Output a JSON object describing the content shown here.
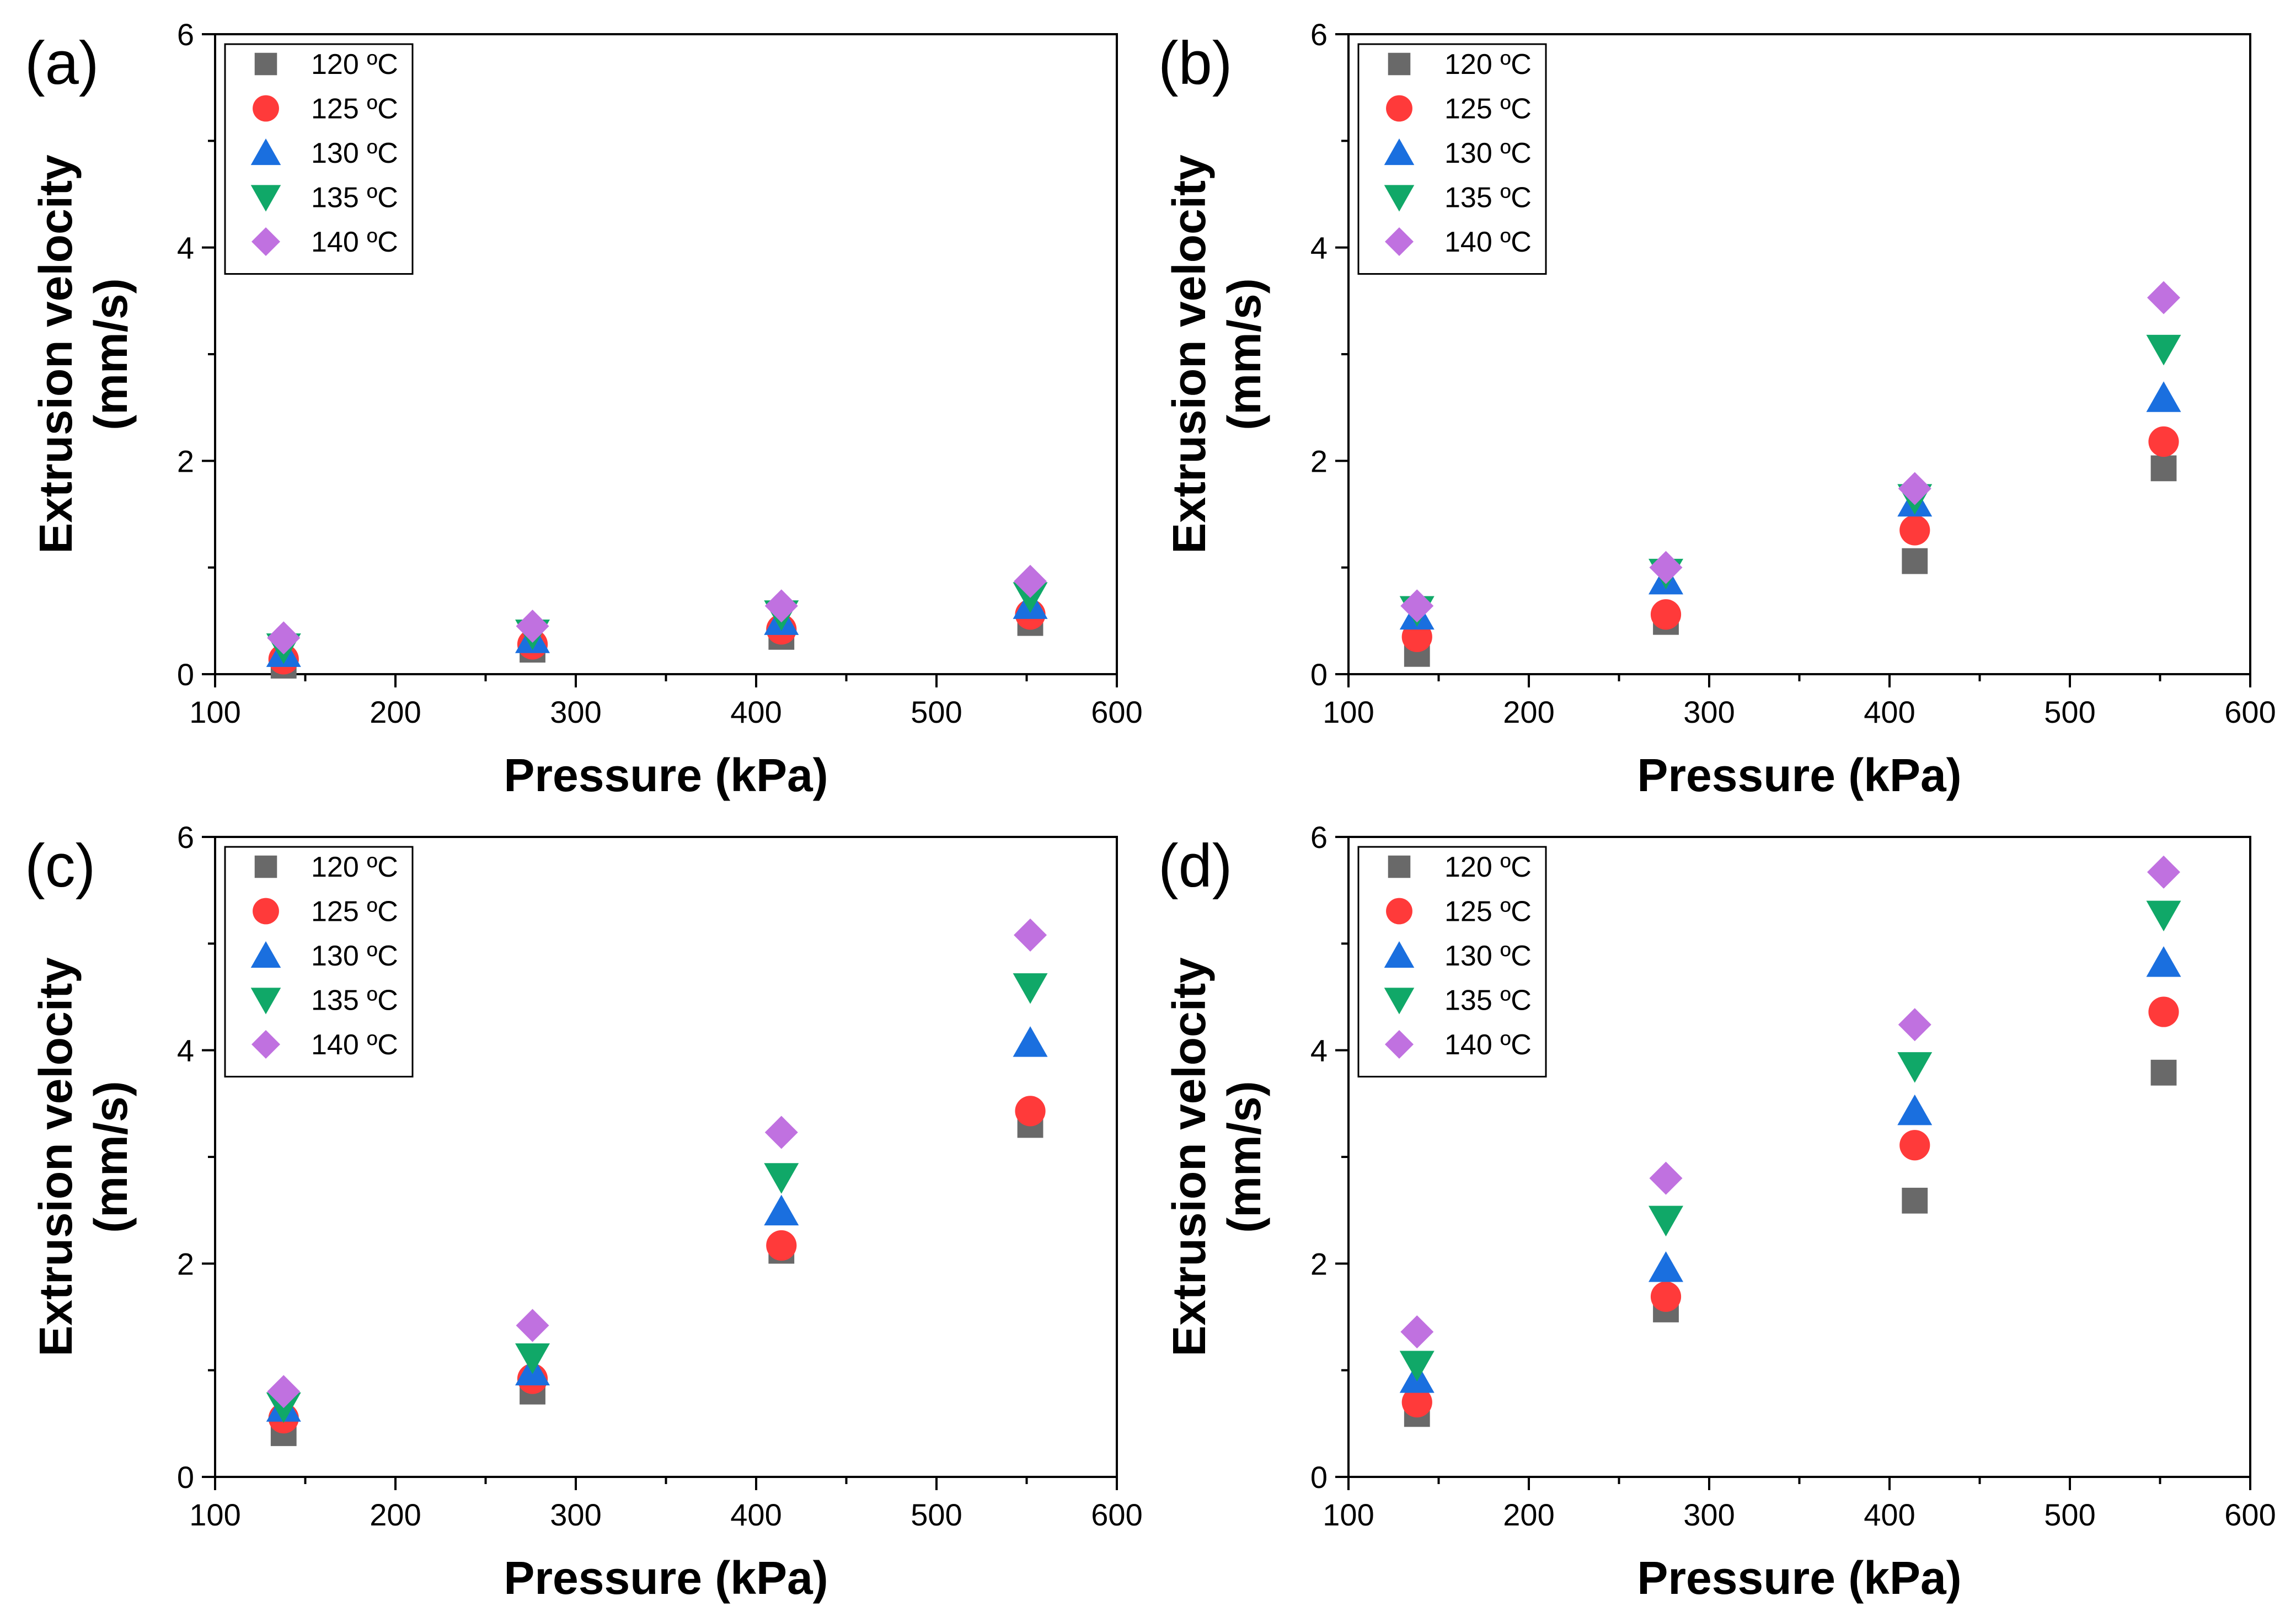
{
  "chart_data": [
    {
      "type": "scatter",
      "panel_label": "(a)",
      "xlabel": "Pressure (kPa)",
      "ylabel_line1": "Extrusion velocity",
      "ylabel_line2": "(mm/s)",
      "xlim": [
        100,
        600
      ],
      "ylim": [
        0,
        6
      ],
      "xticks": [
        "100",
        "200",
        "300",
        "400",
        "500",
        "600"
      ],
      "yticks": [
        "0",
        "2",
        "4",
        "6"
      ],
      "x": [
        138,
        276,
        414,
        552
      ],
      "series": [
        {
          "name": "120 ºC",
          "values": [
            0.08,
            0.23,
            0.35,
            0.48
          ]
        },
        {
          "name": "125 ºC",
          "values": [
            0.14,
            0.28,
            0.42,
            0.56
          ]
        },
        {
          "name": "130 ºC",
          "values": [
            0.2,
            0.33,
            0.5,
            0.65
          ]
        },
        {
          "name": "135 ºC",
          "values": [
            0.25,
            0.38,
            0.56,
            0.73
          ]
        },
        {
          "name": "140 ºC",
          "values": [
            0.34,
            0.45,
            0.64,
            0.87
          ]
        }
      ]
    },
    {
      "type": "scatter",
      "panel_label": "(b)",
      "xlabel": "Pressure (kPa)",
      "ylabel_line1": "Extrusion velocity",
      "ylabel_line2": "(mm/s)",
      "xlim": [
        100,
        600
      ],
      "ylim": [
        0,
        6
      ],
      "xticks": [
        "100",
        "200",
        "300",
        "400",
        "500",
        "600"
      ],
      "yticks": [
        "0",
        "2",
        "4",
        "6"
      ],
      "x": [
        138,
        276,
        414,
        552
      ],
      "series": [
        {
          "name": "120 ºC",
          "values": [
            0.19,
            0.49,
            1.06,
            1.93
          ]
        },
        {
          "name": "125 ºC",
          "values": [
            0.35,
            0.56,
            1.35,
            2.18
          ]
        },
        {
          "name": "130 ºC",
          "values": [
            0.55,
            0.88,
            1.61,
            2.59
          ]
        },
        {
          "name": "135 ºC",
          "values": [
            0.6,
            0.95,
            1.65,
            3.05
          ]
        },
        {
          "name": "140 ºC",
          "values": [
            0.64,
            1.0,
            1.74,
            3.53
          ]
        }
      ]
    },
    {
      "type": "scatter",
      "panel_label": "(c)",
      "xlabel": "Pressure (kPa)",
      "ylabel_line1": "Extrusion velocity",
      "ylabel_line2": "(mm/s)",
      "xlim": [
        100,
        600
      ],
      "ylim": [
        0,
        6
      ],
      "xticks": [
        "100",
        "200",
        "300",
        "400",
        "500",
        "600"
      ],
      "yticks": [
        "0",
        "2",
        "4",
        "6"
      ],
      "x": [
        138,
        276,
        414,
        552
      ],
      "series": [
        {
          "name": "120 ºC",
          "values": [
            0.41,
            0.8,
            2.12,
            3.3
          ]
        },
        {
          "name": "125 ºC",
          "values": [
            0.55,
            0.92,
            2.17,
            3.43
          ]
        },
        {
          "name": "130 ºC",
          "values": [
            0.65,
            0.99,
            2.49,
            4.07
          ]
        },
        {
          "name": "135 ºC",
          "values": [
            0.66,
            1.12,
            2.81,
            4.59
          ]
        },
        {
          "name": "140 ºC",
          "values": [
            0.8,
            1.42,
            3.23,
            5.08
          ]
        }
      ]
    },
    {
      "type": "scatter",
      "panel_label": "(d)",
      "xlabel": "Pressure (kPa)",
      "ylabel_line1": "Extrusion velocity",
      "ylabel_line2": "(mm/s)",
      "xlim": [
        100,
        600
      ],
      "ylim": [
        0,
        6
      ],
      "xticks": [
        "100",
        "200",
        "300",
        "400",
        "500",
        "600"
      ],
      "yticks": [
        "0",
        "2",
        "4",
        "6"
      ],
      "x": [
        138,
        276,
        414,
        552
      ],
      "series": [
        {
          "name": "120 ºC",
          "values": [
            0.59,
            1.57,
            2.59,
            3.79
          ]
        },
        {
          "name": "125 ºC",
          "values": [
            0.7,
            1.69,
            3.11,
            4.36
          ]
        },
        {
          "name": "130 ºC",
          "values": [
            0.92,
            1.96,
            3.43,
            4.82
          ]
        },
        {
          "name": "135 ºC",
          "values": [
            1.05,
            2.41,
            3.85,
            5.27
          ]
        },
        {
          "name": "140 ºC",
          "values": [
            1.36,
            2.8,
            4.24,
            5.67
          ]
        }
      ]
    }
  ],
  "styles": {
    "series_colors": [
      "#696969",
      "#ff3a3a",
      "#1a6fdf",
      "#10a868",
      "#c071e0"
    ],
    "series_markers": [
      "square-icon",
      "circle-icon",
      "triangle-up-icon",
      "triangle-down-icon",
      "diamond-icon"
    ]
  }
}
